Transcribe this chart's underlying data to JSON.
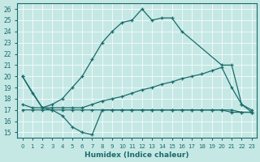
{
  "xlabel": "Humidex (Indice chaleur)",
  "background_color": "#c5e8e5",
  "line_color": "#1a6b6b",
  "xlim": [
    -0.5,
    23.5
  ],
  "ylim": [
    14.5,
    26.5
  ],
  "xticks": [
    0,
    1,
    2,
    3,
    4,
    5,
    6,
    7,
    8,
    9,
    10,
    11,
    12,
    13,
    14,
    15,
    16,
    17,
    18,
    19,
    20,
    21,
    22,
    23
  ],
  "yticks": [
    15,
    16,
    17,
    18,
    19,
    20,
    21,
    22,
    23,
    24,
    25,
    26
  ],
  "lines": [
    {
      "x": [
        0,
        2,
        3,
        4,
        5,
        6,
        7,
        8,
        9,
        10,
        11,
        12,
        13,
        14,
        15,
        16,
        20,
        21,
        22,
        23
      ],
      "y": [
        20,
        17.2,
        17.5,
        18.0,
        19.0,
        20.0,
        21.5,
        23.0,
        24.0,
        24.8,
        25.0,
        26.0,
        25.0,
        25.2,
        25.2,
        24.0,
        21.0,
        21.0,
        17.5,
        16.8
      ]
    },
    {
      "x": [
        0,
        1,
        2,
        3,
        4,
        5,
        6,
        7,
        8,
        9,
        10,
        11,
        12,
        13,
        14,
        15,
        16,
        17,
        18,
        19,
        20,
        21,
        22,
        23
      ],
      "y": [
        20,
        18.5,
        17.2,
        17.0,
        16.5,
        15.5,
        15.0,
        14.8,
        17.0,
        17.0,
        17.0,
        17.0,
        17.0,
        17.0,
        17.0,
        17.0,
        17.0,
        17.0,
        17.0,
        17.0,
        17.0,
        16.8,
        16.8,
        16.8
      ]
    },
    {
      "x": [
        0,
        1,
        2,
        3,
        4,
        5,
        6,
        7,
        8,
        9,
        10,
        11,
        12,
        13,
        14,
        15,
        16,
        17,
        18,
        19,
        20,
        21,
        22,
        23
      ],
      "y": [
        17.5,
        17.2,
        17.2,
        17.2,
        17.2,
        17.2,
        17.2,
        17.5,
        17.8,
        18.0,
        18.2,
        18.5,
        18.8,
        19.0,
        19.3,
        19.5,
        19.8,
        20.0,
        20.2,
        20.5,
        20.8,
        19.0,
        17.5,
        17.0
      ]
    },
    {
      "x": [
        0,
        1,
        2,
        3,
        4,
        5,
        6,
        7,
        8,
        9,
        10,
        11,
        12,
        13,
        14,
        15,
        16,
        17,
        18,
        19,
        20,
        21,
        22,
        23
      ],
      "y": [
        17.0,
        17.0,
        17.0,
        17.0,
        17.0,
        17.0,
        17.0,
        17.0,
        17.0,
        17.0,
        17.0,
        17.0,
        17.0,
        17.0,
        17.0,
        17.0,
        17.0,
        17.0,
        17.0,
        17.0,
        17.0,
        17.0,
        16.8,
        16.8
      ]
    }
  ]
}
